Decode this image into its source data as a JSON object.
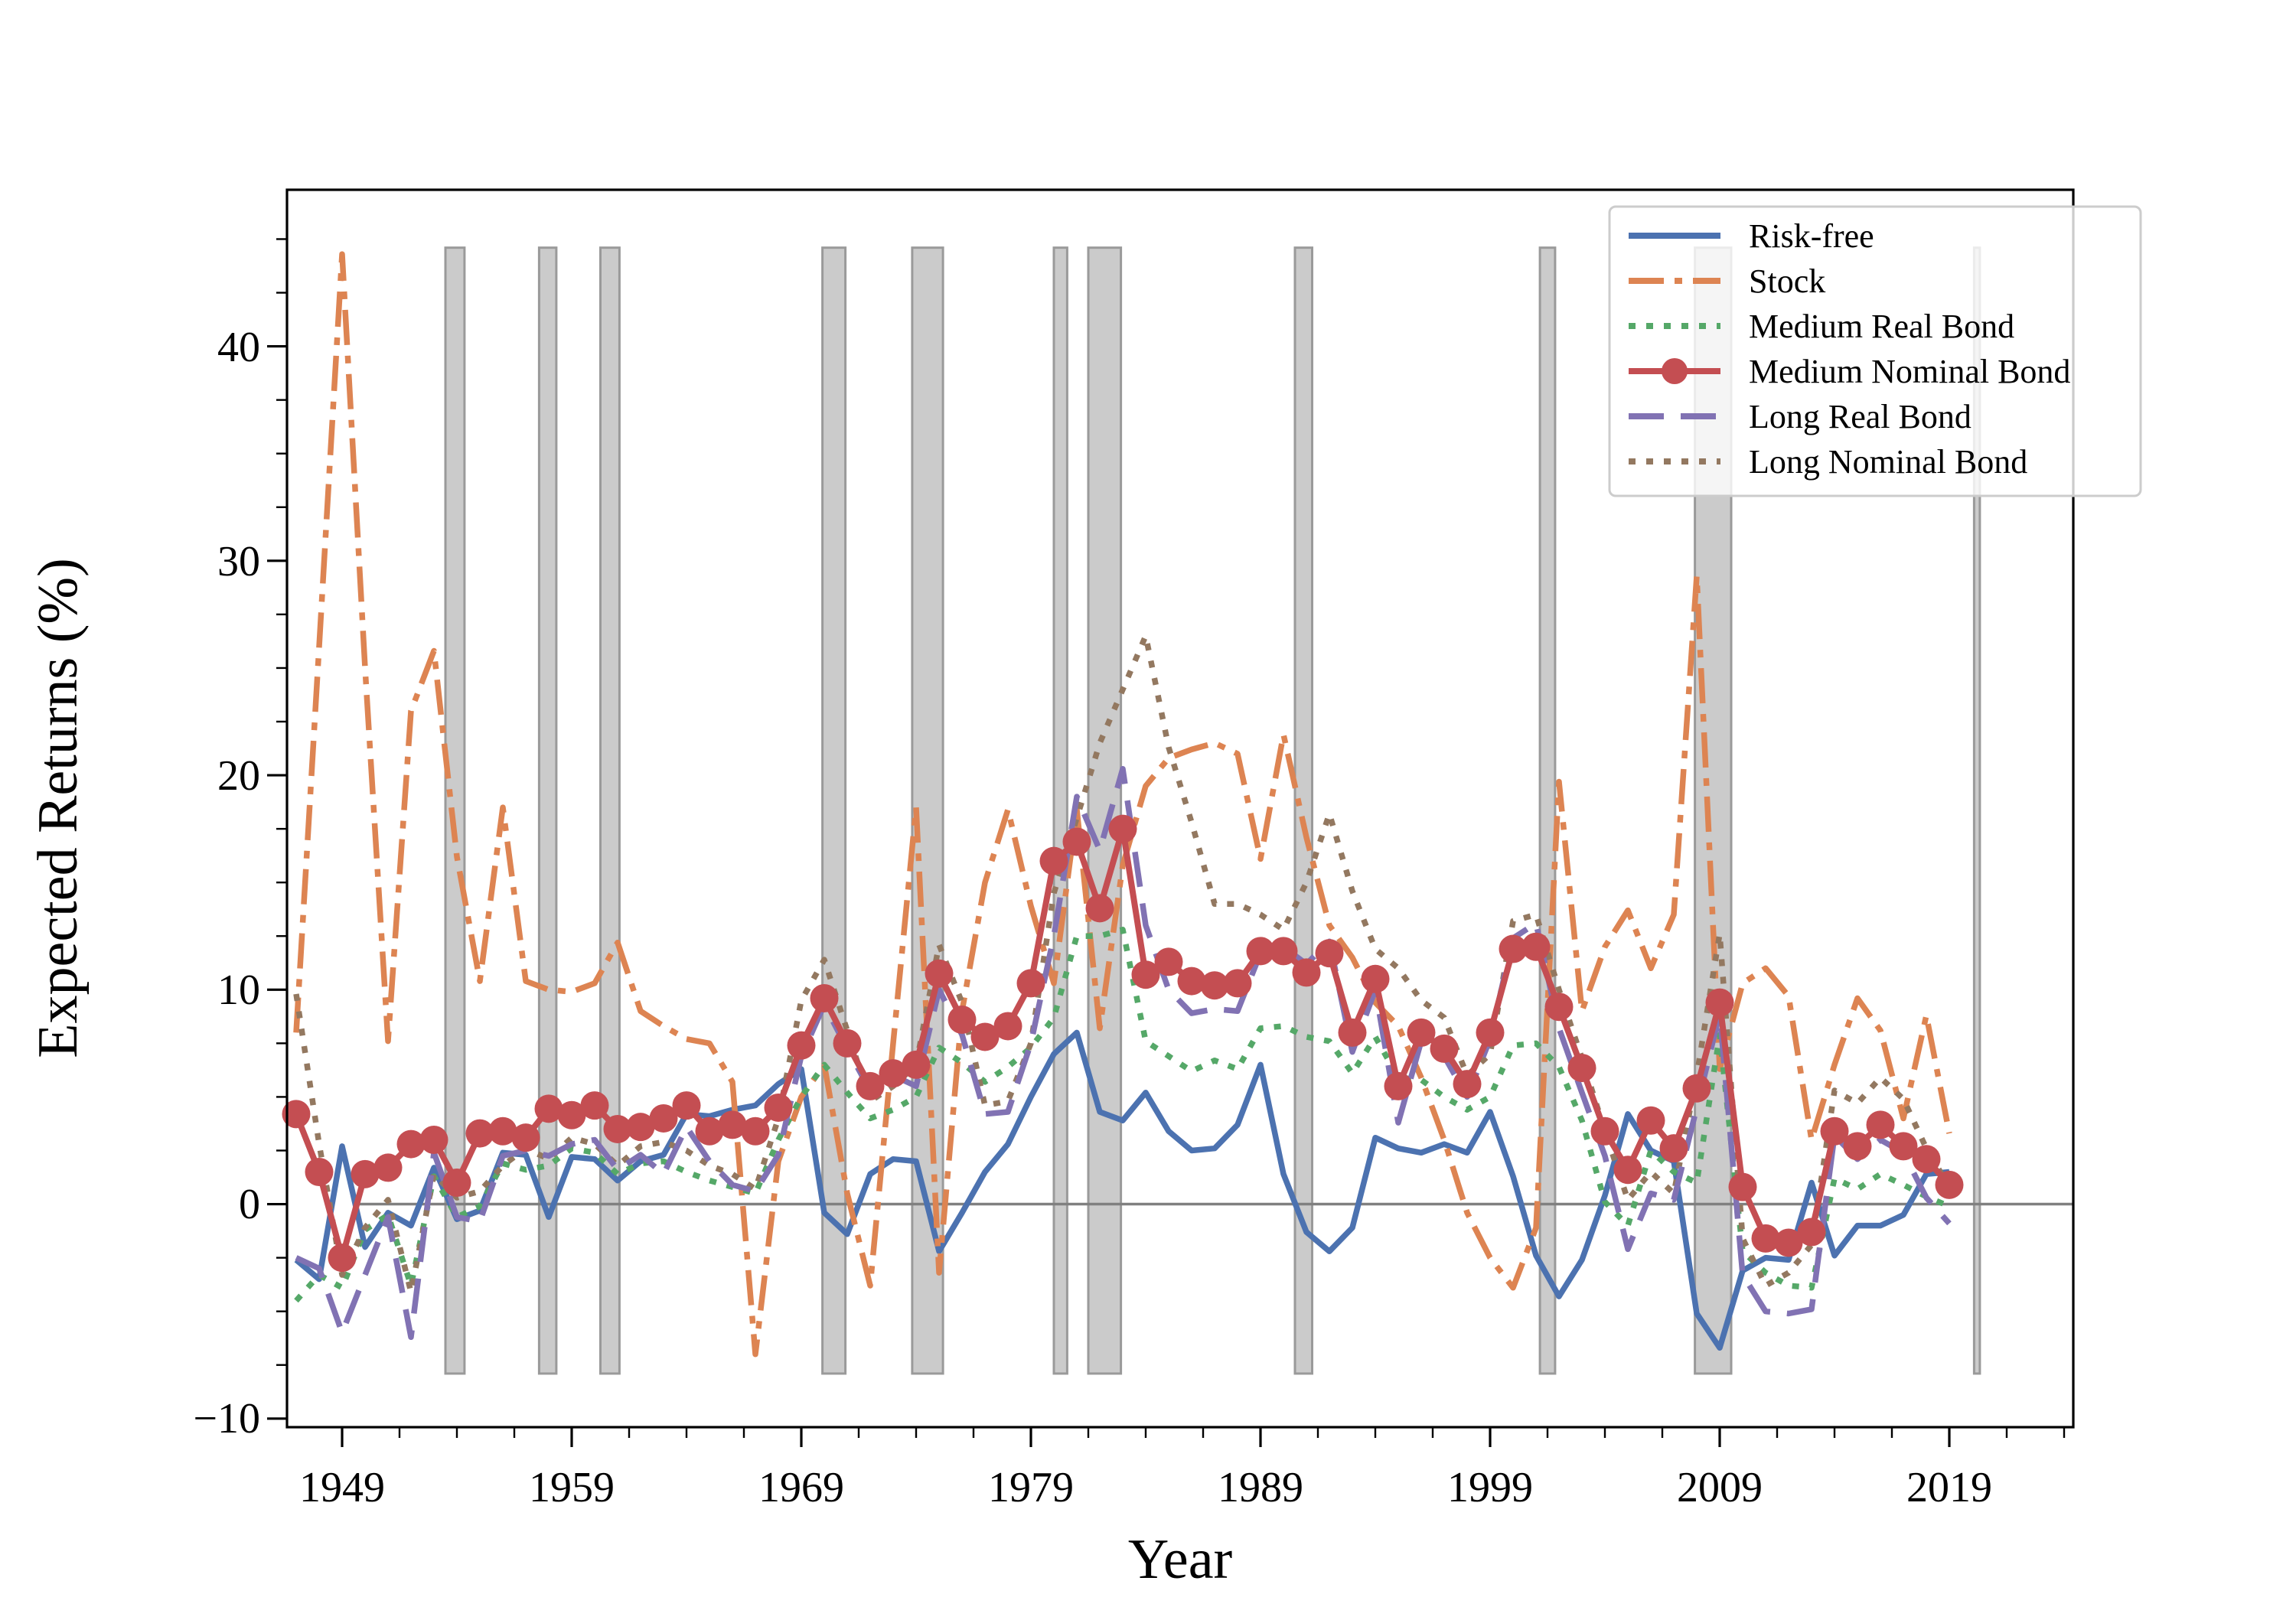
{
  "chart_data": {
    "type": "line",
    "title": "",
    "xlabel": "Year",
    "ylabel": "Expected Returns (%)",
    "xlim": [
      1946.6,
      2024.4
    ],
    "ylim": [
      -10.4,
      47.3
    ],
    "grid": false,
    "legend_position": "upper right",
    "zero_line": {
      "color": "#808080",
      "y": 0,
      "x_start": 1949.5
    },
    "axis_color": "#000000",
    "background_color": "#ffffff",
    "x_ticks": [
      {
        "value": 1949,
        "label": "1949"
      },
      {
        "value": 1959,
        "label": "1959"
      },
      {
        "value": 1969,
        "label": "1969"
      },
      {
        "value": 1979,
        "label": "1979"
      },
      {
        "value": 1989,
        "label": "1989"
      },
      {
        "value": 1999,
        "label": "1999"
      },
      {
        "value": 2009,
        "label": "2009"
      },
      {
        "value": 2019,
        "label": "2019"
      }
    ],
    "y_ticks": [
      {
        "value": -10,
        "label": "−10"
      },
      {
        "value": 0,
        "label": "0"
      },
      {
        "value": 10,
        "label": "10"
      },
      {
        "value": 20,
        "label": "20"
      },
      {
        "value": 30,
        "label": "30"
      },
      {
        "value": 40,
        "label": "40"
      }
    ],
    "minor_tick_step": 2.5,
    "recession_bands": {
      "fill": "#cbcbcb",
      "edge": "#9a9a9a",
      "ymin": -7.9,
      "ymax": 44.6,
      "intervals": [
        [
          1953.5,
          1954.33
        ],
        [
          1957.58,
          1958.33
        ],
        [
          1960.25,
          1961.08
        ],
        [
          1969.92,
          1970.92
        ],
        [
          1973.83,
          1975.17
        ],
        [
          1980.0,
          1980.58
        ],
        [
          1981.5,
          1982.92
        ],
        [
          1990.5,
          1991.25
        ],
        [
          2001.17,
          2001.83
        ],
        [
          2007.92,
          2009.5
        ],
        [
          2020.08,
          2020.33
        ]
      ]
    },
    "x": [
      1947,
      1948,
      1949,
      1950,
      1951,
      1952,
      1953,
      1954,
      1955,
      1956,
      1957,
      1958,
      1959,
      1960,
      1961,
      1962,
      1963,
      1964,
      1965,
      1966,
      1967,
      1968,
      1969,
      1970,
      1971,
      1972,
      1973,
      1974,
      1975,
      1976,
      1977,
      1978,
      1979,
      1980,
      1981,
      1982,
      1983,
      1984,
      1985,
      1986,
      1987,
      1988,
      1989,
      1990,
      1991,
      1992,
      1993,
      1994,
      1995,
      1996,
      1997,
      1998,
      1999,
      2000,
      2001,
      2002,
      2003,
      2004,
      2005,
      2006,
      2007,
      2008,
      2009,
      2010,
      2011,
      2012,
      2013,
      2014,
      2015,
      2016,
      2017,
      2018,
      2019
    ],
    "series": [
      {
        "name": "Risk-free",
        "color": "#4C72B0",
        "style": "solid",
        "marker": "none",
        "values": [
          -2.6,
          -3.5,
          2.7,
          -2.0,
          -0.4,
          -1.0,
          1.7,
          -0.7,
          -0.3,
          2.4,
          2.3,
          -0.6,
          2.2,
          2.1,
          1.1,
          2.0,
          2.3,
          4.2,
          4.1,
          4.4,
          4.6,
          5.6,
          6.3,
          -0.4,
          -1.4,
          1.4,
          2.1,
          2.0,
          -2.2,
          -0.4,
          1.5,
          2.8,
          5.0,
          7.0,
          8.0,
          4.3,
          3.9,
          5.2,
          3.4,
          2.5,
          2.6,
          3.7,
          6.5,
          1.4,
          -1.3,
          -2.2,
          -1.1,
          3.1,
          2.6,
          2.4,
          2.8,
          2.4,
          4.3,
          1.3,
          -2.4,
          -4.3,
          -2.6,
          0.4,
          4.2,
          2.5,
          2.0,
          -5.1,
          -6.7,
          -3.1,
          -2.5,
          -2.6,
          1.0,
          -2.4,
          -1.0,
          -1.0,
          -0.5,
          1.4,
          1.5
        ]
      },
      {
        "name": "Stock",
        "color": "#DD8452",
        "style": "dashdot",
        "marker": "none",
        "values": [
          8.0,
          26.0,
          44.3,
          25.0,
          7.6,
          23.0,
          25.8,
          16.2,
          10.4,
          18.5,
          10.4,
          10.0,
          9.9,
          10.3,
          12.2,
          9.0,
          8.3,
          7.7,
          7.5,
          5.7,
          -7.0,
          2.0,
          5.0,
          6.5,
          0.5,
          -3.8,
          7.5,
          18.5,
          -3.2,
          9.0,
          15.0,
          18.4,
          13.9,
          10.3,
          18.4,
          8.2,
          15.8,
          19.5,
          20.8,
          21.2,
          21.5,
          21.0,
          16.1,
          21.9,
          17.1,
          13.0,
          11.5,
          9.4,
          8.3,
          5.9,
          3.0,
          -0.4,
          -2.5,
          -3.9,
          -1.1,
          19.7,
          9.0,
          12.0,
          13.7,
          11.0,
          13.5,
          29.3,
          6.3,
          10.3,
          11.0,
          9.7,
          3.0,
          6.5,
          9.6,
          8.1,
          4.0,
          8.8,
          3.3
        ]
      },
      {
        "name": "Medium Real Bond",
        "color": "#55A868",
        "style": "dotted",
        "marker": "none",
        "values": [
          -4.5,
          -3.3,
          -3.9,
          -1.2,
          -0.5,
          -3.8,
          1.3,
          -0.6,
          -0.1,
          1.9,
          1.6,
          1.8,
          2.6,
          2.4,
          1.4,
          1.9,
          2.0,
          1.5,
          1.1,
          0.8,
          0.5,
          3.0,
          5.0,
          6.5,
          5.2,
          4.0,
          4.4,
          5.0,
          7.3,
          6.6,
          5.7,
          6.4,
          7.3,
          8.7,
          12.5,
          12.5,
          12.8,
          7.6,
          6.9,
          6.2,
          6.7,
          6.3,
          8.2,
          8.3,
          7.8,
          7.6,
          6.1,
          7.8,
          5.9,
          5.8,
          5.0,
          4.4,
          5.0,
          7.4,
          7.5,
          6.4,
          3.9,
          0.1,
          -1.0,
          2.5,
          1.5,
          1.0,
          7.9,
          -2.2,
          -3.2,
          -3.8,
          -3.9,
          1.2,
          0.7,
          1.4,
          0.9,
          0.35,
          -0.1
        ]
      },
      {
        "name": "Medium Nominal Bond",
        "color": "#C44E52",
        "style": "solid",
        "marker": "circle",
        "values": [
          4.2,
          1.5,
          -2.5,
          1.4,
          1.7,
          2.8,
          3.0,
          1.0,
          3.3,
          3.4,
          3.1,
          4.45,
          4.15,
          4.6,
          3.5,
          3.6,
          4.0,
          4.6,
          3.4,
          3.7,
          3.4,
          4.5,
          7.4,
          9.6,
          7.5,
          5.5,
          6.1,
          6.5,
          10.75,
          8.6,
          7.8,
          8.3,
          10.3,
          16.0,
          16.9,
          13.8,
          17.5,
          10.7,
          11.3,
          10.4,
          10.2,
          10.3,
          11.8,
          11.8,
          10.8,
          11.7,
          8.0,
          10.5,
          5.5,
          8.0,
          7.25,
          5.6,
          8.0,
          11.9,
          12.0,
          9.2,
          6.35,
          3.4,
          1.6,
          3.9,
          2.6,
          5.4,
          9.4,
          0.8,
          -1.6,
          -1.8,
          -1.3,
          3.4,
          2.7,
          3.7,
          2.7,
          2.1,
          0.9
        ]
      },
      {
        "name": "Long Real Bond",
        "color": "#8172B3",
        "style": "dashed",
        "marker": "none",
        "values": [
          -2.5,
          -3.0,
          -6.0,
          -3.3,
          -0.6,
          -6.2,
          2.4,
          -0.6,
          -0.8,
          2.25,
          2.5,
          2.25,
          2.8,
          3.0,
          1.6,
          2.3,
          1.4,
          3.6,
          2.0,
          0.9,
          0.6,
          2.3,
          6.9,
          9.3,
          7.25,
          5.3,
          6.0,
          5.5,
          10.0,
          7.9,
          4.2,
          4.3,
          7.5,
          12.5,
          19.0,
          16.5,
          20.3,
          13.0,
          10.0,
          8.9,
          9.1,
          9.0,
          11.7,
          12.0,
          11.2,
          12.25,
          7.1,
          10.0,
          3.8,
          7.6,
          6.9,
          5.0,
          7.7,
          12.4,
          13.1,
          8.2,
          5.2,
          2.25,
          -2.1,
          0.5,
          0.2,
          4.5,
          8.9,
          -3.3,
          -5.0,
          -5.1,
          -4.9,
          3.2,
          2.1,
          3.0,
          2.4,
          0.3,
          -0.9
        ]
      },
      {
        "name": "Long Nominal Bond",
        "color": "#937860",
        "style": "dotted",
        "marker": "none",
        "values": [
          9.8,
          2.8,
          -3.3,
          -1.1,
          0.2,
          -4.1,
          1.4,
          0.3,
          0.6,
          1.8,
          2.6,
          2.1,
          3.1,
          2.8,
          1.8,
          2.7,
          2.9,
          2.5,
          1.8,
          1.4,
          0.7,
          4.0,
          9.5,
          11.4,
          8.1,
          4.8,
          5.5,
          6.5,
          12.1,
          9.4,
          4.6,
          4.8,
          7.5,
          14.5,
          18.0,
          21.5,
          24.0,
          26.5,
          21.3,
          17.8,
          14.0,
          14.0,
          13.5,
          12.8,
          15.0,
          18.2,
          14.6,
          11.9,
          11.0,
          9.5,
          8.7,
          6.0,
          7.0,
          13.2,
          13.5,
          10.0,
          6.8,
          3.4,
          0.2,
          1.5,
          0.5,
          6.0,
          12.6,
          -1.6,
          -3.8,
          -3.2,
          -1.9,
          5.3,
          4.7,
          5.9,
          4.9,
          2.6,
          0.8
        ]
      }
    ]
  }
}
